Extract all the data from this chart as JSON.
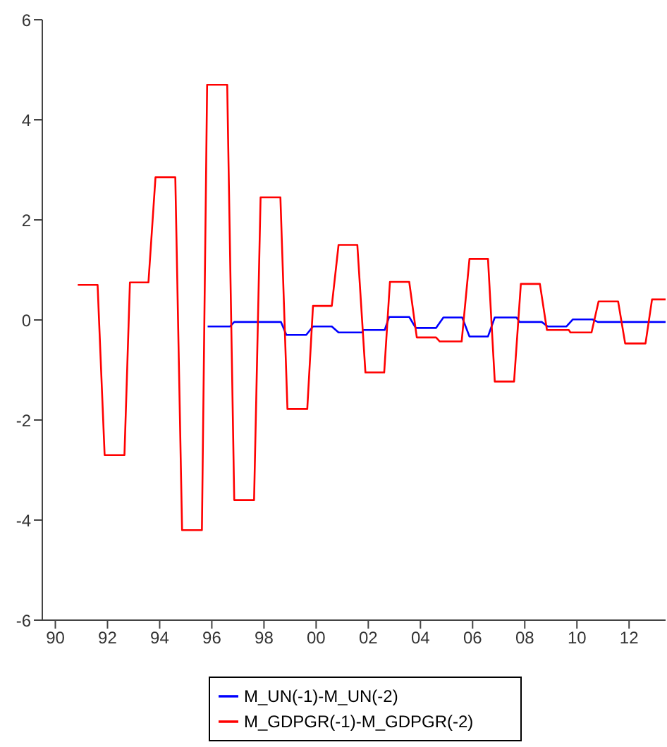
{
  "chart_data": {
    "type": "line",
    "series": [
      {
        "name": "M_UN(-1)-M_UN(-2)",
        "color": "#0000ff",
        "x": [
          1995.84,
          1996.7,
          1996.86,
          1998.65,
          1998.86,
          1999.62,
          1999.88,
          2000.6,
          2000.86,
          2001.77,
          2001.8,
          2002.63,
          2002.8,
          2003.57,
          2003.82,
          2004.6,
          2004.88,
          2005.6,
          2005.88,
          2006.59,
          2006.85,
          2007.68,
          2007.8,
          2008.65,
          2008.88,
          2009.6,
          2009.84,
          2010.6,
          2010.8,
          2013.4
        ],
        "values": [
          -0.13,
          -0.13,
          -0.04,
          -0.04,
          -0.3,
          -0.3,
          -0.13,
          -0.13,
          -0.25,
          -0.25,
          -0.2,
          -0.2,
          0.06,
          0.06,
          -0.16,
          -0.16,
          0.05,
          0.05,
          -0.33,
          -0.33,
          0.05,
          0.05,
          -0.04,
          -0.04,
          -0.13,
          -0.13,
          0.01,
          0.01,
          -0.04,
          -0.04
        ]
      },
      {
        "name": "M_GDPGR(-1)-M_GDPGR(-2)",
        "color": "#ff0000",
        "x": [
          1990.86,
          1991.62,
          1991.89,
          1992.65,
          1992.86,
          1993.57,
          1993.84,
          1994.6,
          1994.86,
          1995.62,
          1995.82,
          1996.59,
          1996.86,
          1997.62,
          1997.87,
          1998.63,
          1998.9,
          1999.66,
          1999.88,
          2000.6,
          2000.86,
          2001.58,
          2001.89,
          2002.61,
          2002.83,
          2003.57,
          2003.86,
          2004.6,
          2004.74,
          2005.58,
          2005.88,
          2006.59,
          2006.85,
          2007.59,
          2007.85,
          2008.58,
          2008.85,
          2009.69,
          2009.75,
          2010.56,
          2010.83,
          2011.58,
          2011.85,
          2012.63,
          2012.88,
          2013.4
        ],
        "values": [
          0.7,
          0.7,
          -2.7,
          -2.7,
          0.75,
          0.75,
          2.85,
          2.85,
          -4.2,
          -4.2,
          4.7,
          4.7,
          -3.6,
          -3.6,
          2.45,
          2.45,
          -1.78,
          -1.78,
          0.28,
          0.28,
          1.5,
          1.5,
          -1.05,
          -1.05,
          0.76,
          0.76,
          -0.35,
          -0.35,
          -0.43,
          -0.43,
          1.22,
          1.22,
          -1.23,
          -1.23,
          0.72,
          0.72,
          -0.2,
          -0.2,
          -0.25,
          -0.25,
          0.37,
          0.37,
          -0.47,
          -0.47,
          0.41,
          0.41
        ]
      }
    ],
    "xlim": [
      1989.5,
      2013.4
    ],
    "xticks": [
      {
        "value": 1990,
        "label": "90"
      },
      {
        "value": 1992,
        "label": "92"
      },
      {
        "value": 1994,
        "label": "94"
      },
      {
        "value": 1996,
        "label": "96"
      },
      {
        "value": 1998,
        "label": "98"
      },
      {
        "value": 2000,
        "label": "00"
      },
      {
        "value": 2002,
        "label": "02"
      },
      {
        "value": 2004,
        "label": "04"
      },
      {
        "value": 2006,
        "label": "06"
      },
      {
        "value": 2008,
        "label": "08"
      },
      {
        "value": 2010,
        "label": "10"
      },
      {
        "value": 2012,
        "label": "12"
      }
    ],
    "ylim": [
      -6,
      6
    ],
    "yticks": [
      -6,
      -4,
      -2,
      0,
      2,
      4,
      6
    ],
    "grid": false,
    "legend": "bottom",
    "marker": "none",
    "line_style": "solid"
  }
}
